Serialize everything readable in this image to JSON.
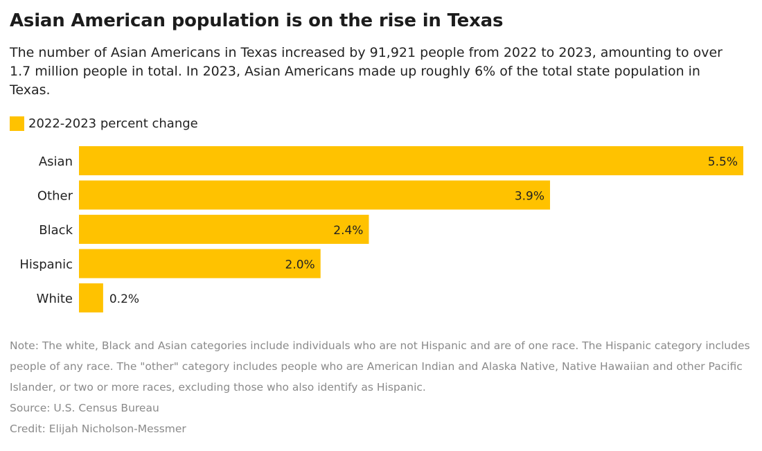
{
  "header": {
    "title": "Asian American population is on the rise in Texas",
    "subtitle": "The number of Asian Americans in Texas increased by 91,921 people from 2022 to 2023, amounting to over 1.7 million people in total. In 2023, Asian Americans made up roughly 6% of the total state population in Texas."
  },
  "legend": {
    "label": "2022-2023 percent change"
  },
  "colors": {
    "bar": "#ffc200",
    "text": "#222222",
    "muted": "#8a8a8a"
  },
  "chart_data": {
    "type": "bar",
    "orientation": "horizontal",
    "title": "Asian American population is on the rise in Texas",
    "categories": [
      "Asian",
      "Other",
      "Black",
      "Hispanic",
      "White"
    ],
    "series": [
      {
        "name": "2022-2023 percent change",
        "values": [
          5.5,
          3.9,
          2.4,
          2.0,
          0.2
        ],
        "labels": [
          "5.5%",
          "3.9%",
          "2.4%",
          "2.0%",
          "0.2%"
        ]
      }
    ],
    "xlim": [
      0,
      5.5
    ],
    "grid": false,
    "legend_position": "top-left"
  },
  "footer": {
    "note": "Note: The white, Black and Asian categories include individuals who are not Hispanic and are of one race. The Hispanic category includes people of any race. The \"other\" category includes people who are American Indian and Alaska Native, Native Hawaiian and other Pacific Islander, or two or more races, excluding those who also identify as Hispanic.",
    "source": "Source: U.S. Census Bureau",
    "credit": "Credit: Elijah Nicholson-Messmer"
  }
}
